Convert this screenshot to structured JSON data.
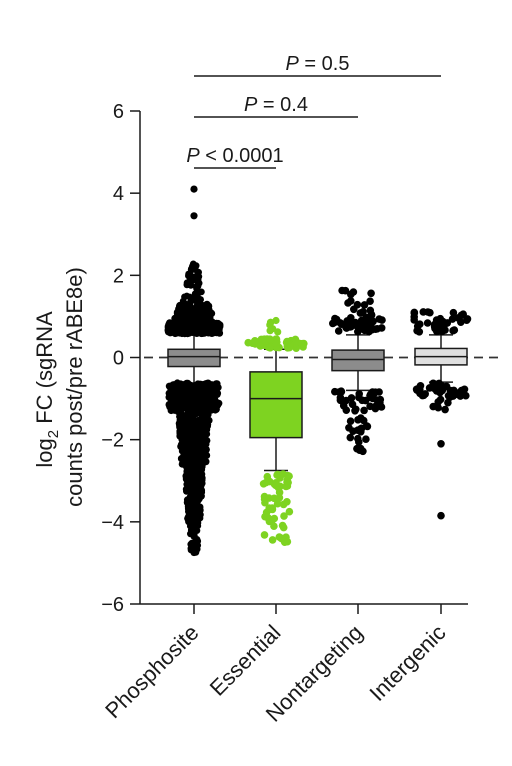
{
  "chart_data": {
    "type": "box",
    "y_axis_title": {
      "line1_prefix": "log",
      "line1_sub": "2",
      "line1_suffix": " FC (sgRNA",
      "line2": "counts post/pre rABE8e)"
    },
    "ylim": [
      -6,
      6
    ],
    "y_ticks": [
      6,
      4,
      2,
      0,
      -2,
      -4,
      -6
    ],
    "y_tick_labels": [
      "6",
      "4",
      "2",
      "0",
      "−2",
      "−4",
      "−6"
    ],
    "reference_line": 0,
    "categories": [
      "Phosphosite",
      "Essential",
      "Nontargeting",
      "Intergenic"
    ],
    "boxes": [
      {
        "name": "Phosphosite",
        "color": "#8c8c8c",
        "point_color": "#000000",
        "whisker_low": -0.65,
        "q1": -0.22,
        "median": 0.02,
        "q3": 0.2,
        "whisker_high": 0.58,
        "upper_outliers": {
          "min": 0.6,
          "max": 2.3,
          "extra": [
            3.45,
            4.1
          ]
        },
        "lower_outliers": {
          "min": -4.75,
          "max": -0.65
        }
      },
      {
        "name": "Essential",
        "color": "#7ed321",
        "point_color": "#7ed321",
        "whisker_low": -2.75,
        "q1": -1.95,
        "median": -1.0,
        "q3": -0.35,
        "whisker_high": 0.2,
        "upper_outliers": {
          "min": 0.22,
          "max": 0.9
        },
        "lower_outliers": {
          "min": -4.55,
          "max": -2.8
        }
      },
      {
        "name": "Nontargeting",
        "color": "#8c8c8c",
        "point_color": "#000000",
        "whisker_low": -0.8,
        "q1": -0.32,
        "median": -0.05,
        "q3": 0.18,
        "whisker_high": 0.55,
        "upper_outliers": {
          "min": 0.62,
          "max": 1.65
        },
        "lower_outliers": {
          "min": -2.45,
          "max": -0.82
        }
      },
      {
        "name": "Intergenic",
        "color": "#e0e0e0",
        "point_color": "#000000",
        "whisker_low": -0.6,
        "q1": -0.18,
        "median": 0.02,
        "q3": 0.22,
        "whisker_high": 0.55,
        "upper_outliers": {
          "min": 0.62,
          "max": 1.12
        },
        "lower_outliers": {
          "min": -2.1,
          "max": -0.62
        },
        "extra_low": [
          -3.85
        ]
      }
    ],
    "significance": [
      {
        "from": "Phosphosite",
        "to": "Essential",
        "label_italic": "P",
        "label_rest": " < 0.0001"
      },
      {
        "from": "Phosphosite",
        "to": "Nontargeting",
        "label_italic": "P",
        "label_rest": " = 0.4"
      },
      {
        "from": "Phosphosite",
        "to": "Intergenic",
        "label_italic": "P",
        "label_rest": " = 0.5"
      }
    ]
  }
}
